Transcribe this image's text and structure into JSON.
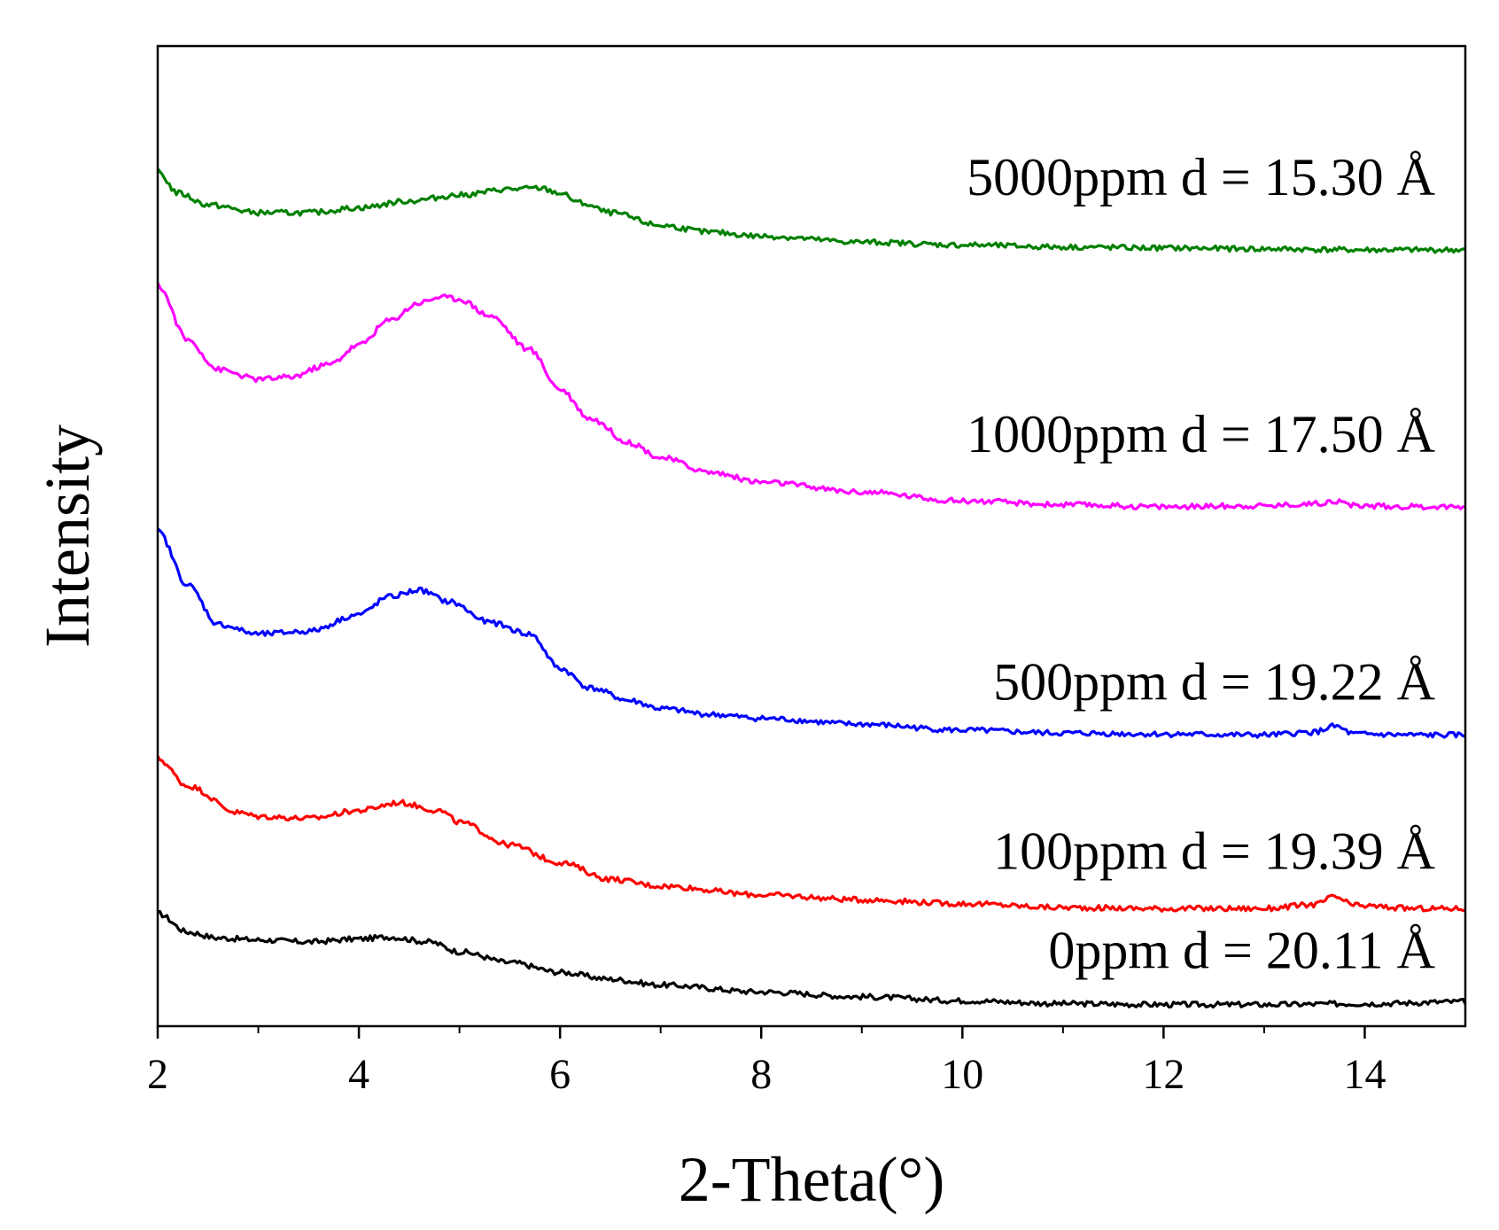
{
  "chart_data": {
    "type": "line",
    "title": "",
    "xlabel": "2-Theta(°)",
    "ylabel": "Intensity",
    "xlim": [
      2,
      15
    ],
    "ylim": [
      0,
      100
    ],
    "x_ticks": [
      2,
      4,
      6,
      8,
      10,
      12,
      14
    ],
    "x_tick_labels": [
      "2",
      "4",
      "6",
      "8",
      "10",
      "12",
      "14"
    ],
    "grid": false,
    "series": [
      {
        "name": "0ppm",
        "label": "0ppm d = 20.11 Å",
        "color": "#000000",
        "x": [
          2.0,
          2.3,
          2.6,
          3.0,
          3.5,
          4.0,
          4.3,
          4.7,
          5.0,
          5.5,
          6.0,
          6.5,
          7.0,
          8.0,
          9.0,
          10.0,
          11.0,
          12.0,
          13.0,
          14.0,
          15.0
        ],
        "y": [
          11.5,
          9.6,
          9.0,
          8.8,
          8.6,
          8.9,
          9.1,
          8.6,
          7.6,
          6.5,
          5.5,
          4.8,
          4.2,
          3.5,
          3.0,
          2.6,
          2.3,
          2.2,
          2.2,
          2.3,
          2.5
        ]
      },
      {
        "name": "100ppm",
        "label": "100ppm d = 19.39 Å",
        "color": "#ff0000",
        "x": [
          2.0,
          2.3,
          2.8,
          3.0,
          3.5,
          4.0,
          4.4,
          4.8,
          5.0,
          5.5,
          6.0,
          6.5,
          7.0,
          8.0,
          9.0,
          10.0,
          11.0,
          12.0,
          13.0,
          13.5,
          13.7,
          13.9,
          14.5,
          15.0
        ],
        "y": [
          27.3,
          24.5,
          21.8,
          21.4,
          21.2,
          22.0,
          22.8,
          22.0,
          20.8,
          18.5,
          16.7,
          15.0,
          14.3,
          13.4,
          12.9,
          12.5,
          12.1,
          12.0,
          12.0,
          12.4,
          13.2,
          12.3,
          12.0,
          12.0
        ]
      },
      {
        "name": "500ppm",
        "label": "500ppm d = 19.22 Å",
        "color": "#0000ff",
        "x": [
          2.0,
          2.3,
          2.6,
          3.0,
          3.5,
          4.0,
          4.3,
          4.6,
          4.9,
          5.3,
          5.7,
          6.0,
          6.3,
          6.7,
          7.0,
          7.5,
          8.0,
          9.0,
          10.0,
          11.0,
          12.0,
          13.0,
          13.5,
          13.7,
          13.9,
          14.5,
          15.0
        ],
        "y": [
          50.5,
          45.0,
          41.0,
          40.0,
          40.3,
          42.0,
          43.8,
          44.5,
          43.3,
          41.2,
          40.0,
          36.5,
          34.5,
          33.2,
          32.4,
          31.8,
          31.4,
          30.8,
          30.2,
          29.9,
          29.8,
          29.7,
          30.0,
          30.6,
          29.8,
          29.7,
          29.7
        ]
      },
      {
        "name": "1000ppm",
        "label": "1000ppm d = 17.50 Å",
        "color": "#ff00ff",
        "x": [
          2.0,
          2.3,
          2.6,
          3.0,
          3.3,
          3.7,
          4.0,
          4.3,
          4.6,
          4.8,
          5.0,
          5.3,
          5.7,
          6.0,
          6.3,
          6.7,
          7.0,
          7.5,
          8.0,
          9.0,
          10.0,
          11.0,
          12.0,
          13.0,
          13.5,
          13.7,
          13.9,
          14.5,
          15.0
        ],
        "y": [
          75.6,
          70.0,
          67.0,
          66.0,
          66.2,
          67.5,
          69.5,
          72.0,
          73.8,
          74.4,
          74.2,
          72.5,
          69.0,
          65.0,
          62.0,
          59.5,
          58.0,
          56.5,
          55.5,
          54.5,
          53.6,
          53.2,
          53.0,
          53.1,
          53.3,
          53.6,
          53.1,
          53.0,
          53.0
        ]
      },
      {
        "name": "5000ppm",
        "label": "5000ppm d = 15.30 Å",
        "color": "#008000",
        "x": [
          2.0,
          2.2,
          2.5,
          3.0,
          3.5,
          4.0,
          4.5,
          5.0,
          5.5,
          5.8,
          6.0,
          6.2,
          6.5,
          7.0,
          7.5,
          8.0,
          9.0,
          10.0,
          11.0,
          12.0,
          13.0,
          14.0,
          15.0
        ],
        "y": [
          87.2,
          85.0,
          83.8,
          83.0,
          83.0,
          83.5,
          84.2,
          84.8,
          85.4,
          85.5,
          85.0,
          84.0,
          83.0,
          81.7,
          81.0,
          80.6,
          80.0,
          79.7,
          79.5,
          79.4,
          79.3,
          79.2,
          79.2
        ]
      }
    ]
  }
}
